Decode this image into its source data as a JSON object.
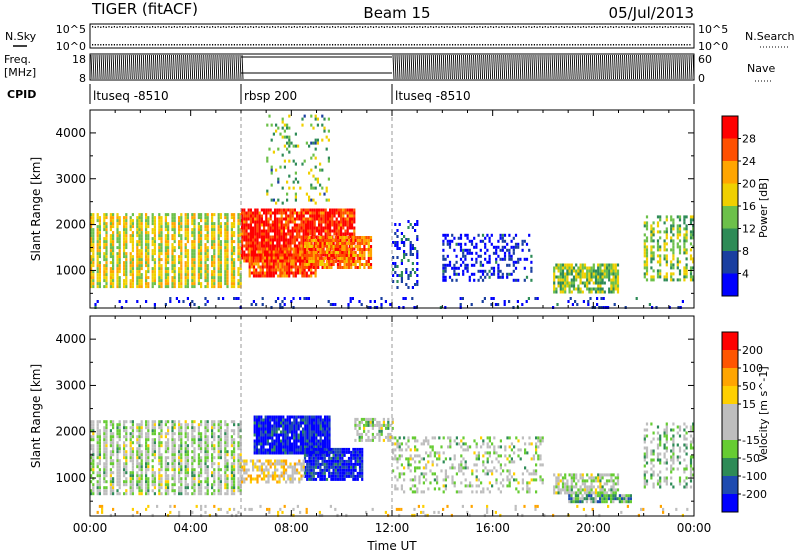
{
  "header": {
    "station": "TIGER (fitACF)",
    "beam": "Beam 15",
    "date": "05/Jul/2013"
  },
  "strips": {
    "nsky_label": "N.Sky",
    "nsearch_label": "N.Search",
    "nsky_ticks": [
      "10^5",
      "10^0"
    ],
    "freq_label_line1": "Freq.",
    "freq_label_line2": "[MHz]",
    "freq_ticks": [
      "18",
      "8"
    ],
    "nave_label": "Nave",
    "nave_ticks": [
      "60",
      "0"
    ],
    "cpid_label": "CPID"
  },
  "cpid_segments": [
    {
      "label": "ltuseq -8510",
      "start_hour": 0,
      "end_hour": 6
    },
    {
      "label": "rbsp 200",
      "start_hour": 6,
      "end_hour": 12
    },
    {
      "label": "ltuseq -8510",
      "start_hour": 12,
      "end_hour": 24
    }
  ],
  "colors": {
    "power_scale": [
      "#0000ff",
      "#1a3fa0",
      "#2e8b57",
      "#6cc04a",
      "#f0d000",
      "#ffa500",
      "#ff5000",
      "#ff0000"
    ],
    "velocity_scale": [
      "#0000ff",
      "#1e4bb0",
      "#2e8b57",
      "#66cc33",
      "#bebebe",
      "#bebebe",
      "#ffd000",
      "#ffa500",
      "#ff5500",
      "#ff0000"
    ]
  },
  "chart_data": [
    {
      "type": "heatmap",
      "quantity": "power",
      "ylabel": "Slant Range [km]",
      "ylim": [
        180,
        4500
      ],
      "xlim": [
        0,
        24
      ],
      "yticks": [
        "1000",
        "2000",
        "3000",
        "4000"
      ],
      "xticks": [
        "00:00",
        "04:00",
        "08:00",
        "12:00",
        "16:00",
        "20:00",
        "00:00"
      ],
      "colorbar_label": "Power [dB]",
      "colorbar_ticks": [
        "28",
        "24",
        "20",
        "16",
        "12",
        "8",
        "4"
      ],
      "colorbar_range": [
        0,
        30
      ],
      "regions": [
        {
          "t": [
            0,
            6
          ],
          "r": [
            650,
            2250
          ],
          "level": 0.55,
          "density": 0.9,
          "striped": true
        },
        {
          "t": [
            6,
            10.5
          ],
          "r": [
            1200,
            2350
          ],
          "level": 0.9,
          "density": 0.9
        },
        {
          "t": [
            6.3,
            9
          ],
          "r": [
            900,
            1500
          ],
          "level": 0.85,
          "density": 0.85
        },
        {
          "t": [
            8.5,
            11.2
          ],
          "r": [
            1050,
            1750
          ],
          "level": 0.75,
          "density": 0.8
        },
        {
          "t": [
            7,
            9.5
          ],
          "r": [
            2500,
            4400
          ],
          "level": 0.4,
          "density": 0.15
        },
        {
          "t": [
            12,
            13
          ],
          "r": [
            600,
            2100
          ],
          "level": 0.15,
          "density": 0.3
        },
        {
          "t": [
            14,
            17.5
          ],
          "r": [
            800,
            1800
          ],
          "level": 0.1,
          "density": 0.35
        },
        {
          "t": [
            18.4,
            21
          ],
          "r": [
            550,
            1150
          ],
          "level": 0.45,
          "density": 0.8
        },
        {
          "t": [
            22,
            24
          ],
          "r": [
            800,
            2200
          ],
          "level": 0.45,
          "density": 0.65,
          "striped": true
        },
        {
          "t": [
            0,
            24
          ],
          "r": [
            200,
            420
          ],
          "level": 0.1,
          "density": 0.12
        }
      ]
    },
    {
      "type": "heatmap",
      "quantity": "velocity",
      "ylabel": "Slant Range [km]",
      "xlabel": "Time UT",
      "ylim": [
        180,
        4500
      ],
      "xlim": [
        0,
        24
      ],
      "yticks": [
        "1000",
        "2000",
        "3000",
        "4000"
      ],
      "xticks": [
        "00:00",
        "04:00",
        "08:00",
        "12:00",
        "16:00",
        "20:00",
        "00:00"
      ],
      "colorbar_label": "Velocity [m s^-1]",
      "colorbar_ticks": [
        "200",
        "100",
        "50",
        "15",
        "-15",
        "-50",
        "-100",
        "-200"
      ],
      "colorbar_range": [
        -250,
        250
      ],
      "regions": [
        {
          "t": [
            0,
            6
          ],
          "r": [
            650,
            2250
          ],
          "level": 0.45,
          "density": 0.85,
          "striped": true
        },
        {
          "t": [
            6.5,
            9.5
          ],
          "r": [
            1550,
            2350
          ],
          "level": 0.05,
          "density": 0.95
        },
        {
          "t": [
            8.5,
            10.8
          ],
          "r": [
            1000,
            1650
          ],
          "level": 0.05,
          "density": 0.9
        },
        {
          "t": [
            6,
            8.5
          ],
          "r": [
            900,
            1400
          ],
          "level": 0.6,
          "density": 0.6
        },
        {
          "t": [
            10.5,
            12
          ],
          "r": [
            1800,
            2300
          ],
          "level": 0.45,
          "density": 0.7
        },
        {
          "t": [
            12,
            18
          ],
          "r": [
            700,
            1900
          ],
          "level": 0.45,
          "density": 0.3
        },
        {
          "t": [
            18.4,
            21
          ],
          "r": [
            700,
            1100
          ],
          "level": 0.45,
          "density": 0.7
        },
        {
          "t": [
            19,
            21.5
          ],
          "r": [
            500,
            650
          ],
          "level": 0.3,
          "density": 0.8
        },
        {
          "t": [
            22,
            24
          ],
          "r": [
            800,
            2200
          ],
          "level": 0.42,
          "density": 0.5,
          "striped": true
        },
        {
          "t": [
            0,
            24
          ],
          "r": [
            200,
            420
          ],
          "level": 0.6,
          "density": 0.12
        }
      ]
    }
  ]
}
